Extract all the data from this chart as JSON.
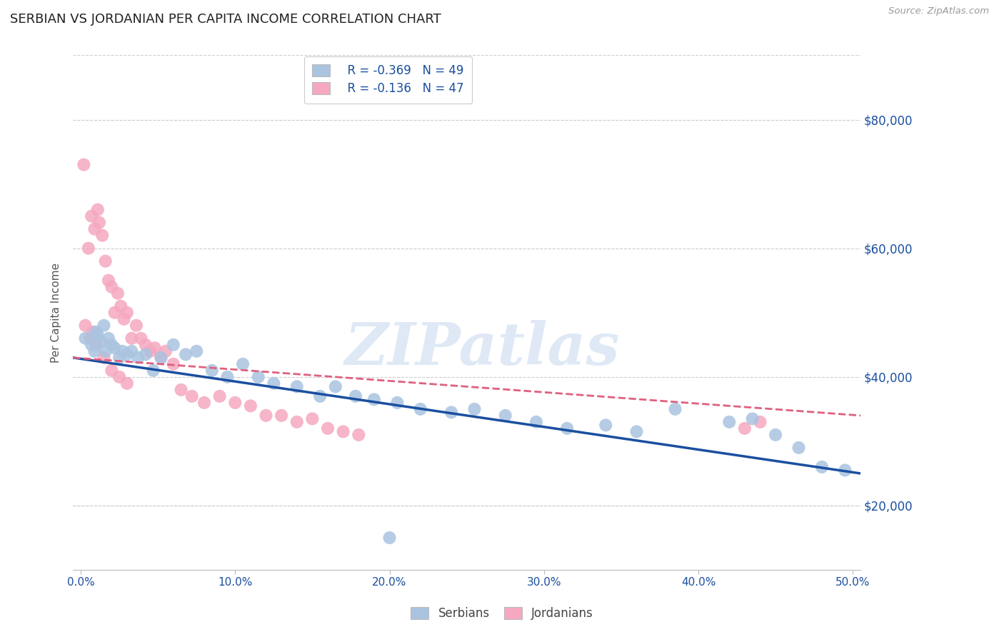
{
  "title": "SERBIAN VS JORDANIAN PER CAPITA INCOME CORRELATION CHART",
  "source": "Source: ZipAtlas.com",
  "ylabel": "Per Capita Income",
  "xtick_labels": [
    "0.0%",
    "10.0%",
    "20.0%",
    "30.0%",
    "40.0%",
    "50.0%"
  ],
  "xtick_vals": [
    0.0,
    0.1,
    0.2,
    0.3,
    0.4,
    0.5
  ],
  "ytick_vals": [
    20000,
    40000,
    60000,
    80000
  ],
  "ytick_labels": [
    "$20,000",
    "$40,000",
    "$60,000",
    "$80,000"
  ],
  "xlim": [
    -0.005,
    0.505
  ],
  "ylim": [
    10000,
    90000
  ],
  "watermark_text": "ZIPatlas",
  "serbian_color": "#aac4e0",
  "jordanian_color": "#f5a8bf",
  "serbian_line_color": "#1a4fa0",
  "jordanian_line_color": "#e06080",
  "legend_serbian_R": "R = -0.369",
  "legend_serbian_N": "N = 49",
  "legend_jordanian_R": "R = -0.136",
  "legend_jordanian_N": "N = 47",
  "serbian_x": [
    0.003,
    0.007,
    0.009,
    0.01,
    0.011,
    0.013,
    0.015,
    0.016,
    0.018,
    0.02,
    0.022,
    0.025,
    0.027,
    0.03,
    0.033,
    0.037,
    0.042,
    0.047,
    0.052,
    0.06,
    0.068,
    0.075,
    0.085,
    0.095,
    0.105,
    0.115,
    0.125,
    0.14,
    0.155,
    0.165,
    0.178,
    0.19,
    0.205,
    0.22,
    0.24,
    0.255,
    0.275,
    0.295,
    0.315,
    0.34,
    0.36,
    0.385,
    0.42,
    0.435,
    0.45,
    0.465,
    0.48,
    0.495,
    0.2
  ],
  "serbian_y": [
    46000,
    45000,
    44000,
    47000,
    46500,
    45500,
    48000,
    44000,
    46000,
    45000,
    44500,
    43000,
    44000,
    43500,
    44000,
    43000,
    43500,
    41000,
    43000,
    45000,
    43500,
    44000,
    41000,
    40000,
    42000,
    40000,
    39000,
    38500,
    37000,
    38500,
    37000,
    36500,
    36000,
    35000,
    34500,
    35000,
    34000,
    33000,
    32000,
    32500,
    31500,
    35000,
    33000,
    33500,
    31000,
    29000,
    26000,
    25500,
    15000
  ],
  "jordanian_x": [
    0.002,
    0.005,
    0.007,
    0.009,
    0.011,
    0.012,
    0.014,
    0.016,
    0.018,
    0.02,
    0.022,
    0.024,
    0.026,
    0.028,
    0.03,
    0.033,
    0.036,
    0.039,
    0.042,
    0.045,
    0.048,
    0.052,
    0.055,
    0.06,
    0.065,
    0.072,
    0.08,
    0.09,
    0.1,
    0.11,
    0.12,
    0.13,
    0.14,
    0.15,
    0.16,
    0.17,
    0.18,
    0.003,
    0.006,
    0.008,
    0.01,
    0.015,
    0.02,
    0.025,
    0.03,
    0.43,
    0.44
  ],
  "jordanian_y": [
    73000,
    60000,
    65000,
    63000,
    66000,
    64000,
    62000,
    58000,
    55000,
    54000,
    50000,
    53000,
    51000,
    49000,
    50000,
    46000,
    48000,
    46000,
    45000,
    44000,
    44500,
    43000,
    44000,
    42000,
    38000,
    37000,
    36000,
    37000,
    36000,
    35500,
    34000,
    34000,
    33000,
    33500,
    32000,
    31500,
    31000,
    48000,
    46000,
    47000,
    45000,
    43000,
    41000,
    40000,
    39000,
    32000,
    33000
  ]
}
